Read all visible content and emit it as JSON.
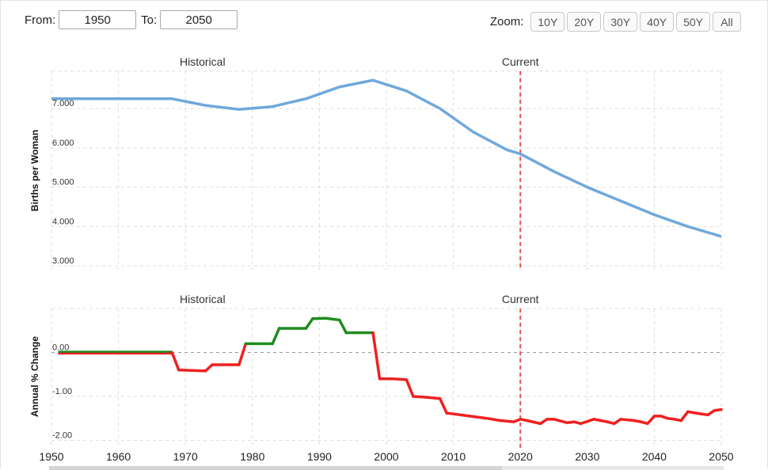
{
  "controls": {
    "from_label": "From:",
    "from_value": "1950",
    "to_label": "To:",
    "to_value": "2050",
    "zoom_label": "Zoom:",
    "zoom_buttons": [
      "10Y",
      "20Y",
      "30Y",
      "40Y",
      "50Y",
      "All"
    ]
  },
  "colors": {
    "fertility_line": "#6fa8dc",
    "increase": "#1e8c1e",
    "decrease": "#f02020",
    "current_marker": "#e05555",
    "grid": "#dddddd"
  },
  "chart_data": [
    {
      "type": "line",
      "ylabel": "Births per Woman",
      "xlabel": "",
      "xlim": [
        1950,
        2050
      ],
      "ylim": [
        2.9,
        7.95
      ],
      "yticks": [
        "3.000",
        "4.000",
        "5.000",
        "6.000",
        "7.000"
      ],
      "ytick_values": [
        3,
        4,
        5,
        6,
        7
      ],
      "annotations": [
        {
          "text": "Historical",
          "x": 1980
        },
        {
          "text": "Current",
          "x": 2020
        }
      ],
      "current_year": 2020,
      "grid": true,
      "x": [
        1950,
        1955,
        1960,
        1965,
        1968,
        1973,
        1978,
        1983,
        1988,
        1993,
        1998,
        2003,
        2008,
        2013,
        2018,
        2020,
        2025,
        2030,
        2035,
        2040,
        2045,
        2050
      ],
      "values": [
        7.25,
        7.25,
        7.25,
        7.25,
        7.25,
        7.08,
        6.98,
        7.05,
        7.25,
        7.55,
        7.72,
        7.45,
        7.0,
        6.4,
        5.95,
        5.85,
        5.4,
        5.0,
        4.65,
        4.3,
        4.0,
        3.75
      ]
    },
    {
      "type": "line",
      "ylabel": "Annual % Change",
      "xlabel": "",
      "xlim": [
        1950,
        2050
      ],
      "ylim": [
        -2.1,
        1.0
      ],
      "yticks": [
        "-2.00",
        "-1.00",
        "0.00"
      ],
      "ytick_values": [
        -2,
        -1,
        0
      ],
      "annotations": [
        {
          "text": "Historical",
          "x": 1980
        },
        {
          "text": "Current",
          "x": 2020
        }
      ],
      "current_year": 2020,
      "grid": true,
      "xticks": [
        "1950",
        "1960",
        "1970",
        "1980",
        "1990",
        "2000",
        "2010",
        "2020",
        "2030",
        "2040",
        "2050"
      ],
      "xtick_values": [
        1950,
        1960,
        1970,
        1980,
        1990,
        2000,
        2010,
        2020,
        2030,
        2040,
        2050
      ],
      "x": [
        1951,
        1968,
        1969,
        1973,
        1974,
        1978,
        1979,
        1983,
        1984,
        1988,
        1989,
        1991,
        1993,
        1994,
        1996,
        1998,
        1999,
        2001,
        2003,
        2004,
        2006,
        2008,
        2009,
        2011,
        2013,
        2015,
        2017,
        2019,
        2020,
        2021,
        2023,
        2024,
        2025,
        2027,
        2028,
        2029,
        2031,
        2032,
        2033,
        2034,
        2035,
        2037,
        2038,
        2039,
        2040,
        2041,
        2042,
        2043,
        2044,
        2045,
        2047,
        2048,
        2049,
        2050
      ],
      "values": [
        0.0,
        0.0,
        -0.4,
        -0.42,
        -0.28,
        -0.28,
        0.2,
        0.2,
        0.55,
        0.55,
        0.77,
        0.78,
        0.74,
        0.45,
        0.45,
        0.45,
        -0.6,
        -0.6,
        -0.62,
        -1.0,
        -1.02,
        -1.05,
        -1.38,
        -1.42,
        -1.46,
        -1.5,
        -1.55,
        -1.58,
        -1.52,
        -1.55,
        -1.62,
        -1.52,
        -1.52,
        -1.6,
        -1.58,
        -1.62,
        -1.52,
        -1.55,
        -1.58,
        -1.62,
        -1.52,
        -1.55,
        -1.58,
        -1.62,
        -1.45,
        -1.45,
        -1.5,
        -1.52,
        -1.55,
        -1.35,
        -1.4,
        -1.42,
        -1.32,
        -1.3
      ]
    }
  ]
}
